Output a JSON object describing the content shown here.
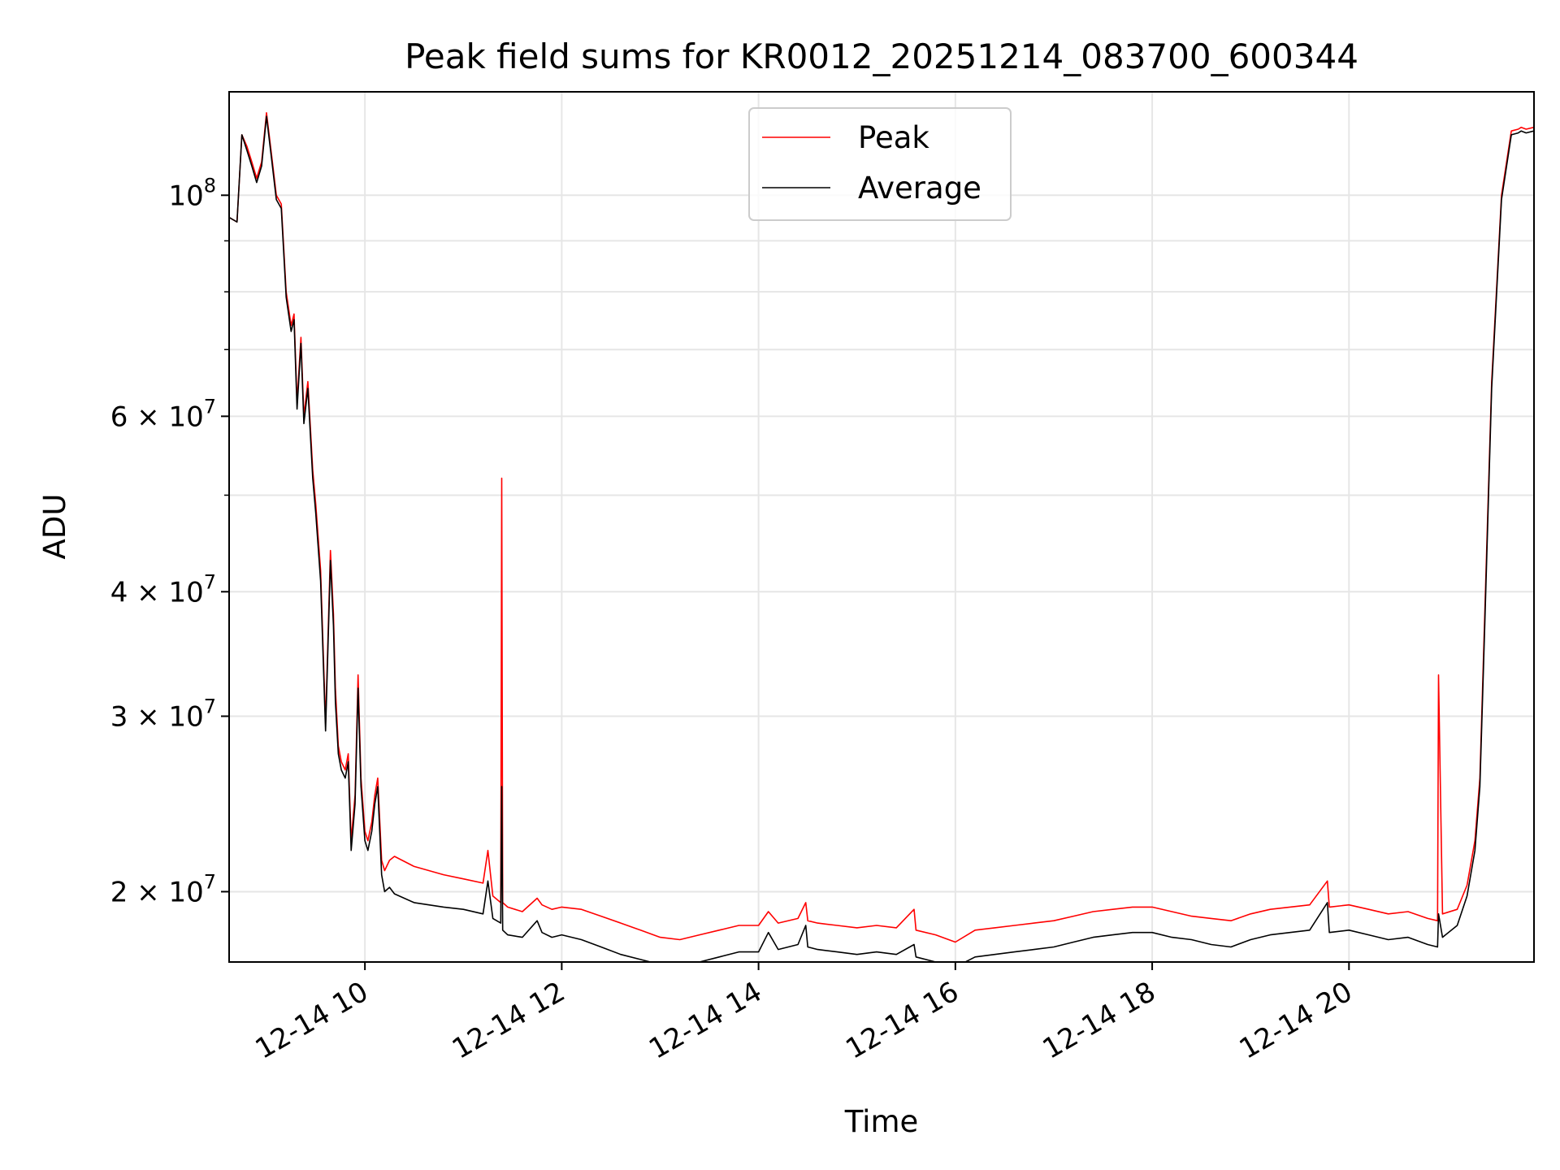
{
  "chart_data": {
    "type": "line",
    "title": "Peak field sums for KR0012_20251214_083700_600344",
    "xlabel": "Time",
    "ylabel": "ADU",
    "y_scale": "log",
    "ylim": [
      17000000,
      127000000
    ],
    "xlim": [
      8.62,
      21.88
    ],
    "grid": true,
    "legend_position": "upper center",
    "x_ticks": [
      {
        "value": 10,
        "label": "12-14 10"
      },
      {
        "value": 12,
        "label": "12-14 12"
      },
      {
        "value": 14,
        "label": "12-14 14"
      },
      {
        "value": 16,
        "label": "12-14 16"
      },
      {
        "value": 18,
        "label": "12-14 18"
      },
      {
        "value": 20,
        "label": "12-14 20"
      }
    ],
    "y_ticks": [
      {
        "value": 20000000,
        "mantissa": "2",
        "exp": "7"
      },
      {
        "value": 30000000,
        "mantissa": "3",
        "exp": "7"
      },
      {
        "value": 40000000,
        "mantissa": "4",
        "exp": "7"
      },
      {
        "value": 60000000,
        "mantissa": "6",
        "exp": "7"
      },
      {
        "value": 100000000,
        "mantissa": "",
        "exp": "8"
      }
    ],
    "y_minor_ticks": [
      50000000,
      70000000,
      80000000,
      90000000
    ],
    "series": [
      {
        "name": "Peak",
        "color": "#ff0000",
        "x": [
          8.62,
          8.7,
          8.75,
          8.8,
          8.85,
          8.9,
          8.95,
          9.0,
          9.05,
          9.1,
          9.15,
          9.2,
          9.25,
          9.28,
          9.31,
          9.35,
          9.38,
          9.42,
          9.47,
          9.5,
          9.55,
          9.6,
          9.65,
          9.68,
          9.7,
          9.73,
          9.76,
          9.8,
          9.83,
          9.86,
          9.9,
          9.93,
          9.96,
          10.0,
          10.03,
          10.07,
          10.1,
          10.13,
          10.17,
          10.2,
          10.25,
          10.3,
          10.5,
          10.8,
          11.0,
          11.2,
          11.25,
          11.3,
          11.38,
          11.39,
          11.4,
          11.45,
          11.6,
          11.75,
          11.8,
          11.9,
          12.0,
          12.2,
          12.4,
          12.6,
          12.8,
          13.0,
          13.2,
          13.4,
          13.6,
          13.8,
          14.0,
          14.1,
          14.2,
          14.4,
          14.48,
          14.5,
          14.6,
          14.8,
          15.0,
          15.2,
          15.4,
          15.58,
          15.6,
          15.8,
          16.0,
          16.2,
          16.4,
          16.6,
          16.8,
          17.0,
          17.2,
          17.4,
          17.6,
          17.8,
          18.0,
          18.2,
          18.4,
          18.6,
          18.8,
          19.0,
          19.2,
          19.4,
          19.6,
          19.78,
          19.8,
          20.0,
          20.2,
          20.4,
          20.6,
          20.8,
          20.9,
          20.91,
          20.95,
          21.1,
          21.2,
          21.28,
          21.33,
          21.38,
          21.45,
          21.55,
          21.65,
          21.72,
          21.75,
          21.8,
          21.88
        ],
        "values": [
          95000000,
          94000000,
          115000000,
          112000000,
          108000000,
          104000000,
          108000000,
          121000000,
          110000000,
          100000000,
          98000000,
          80000000,
          74000000,
          76000000,
          62000000,
          72000000,
          60000000,
          65000000,
          53000000,
          49000000,
          42000000,
          29500000,
          44000000,
          38000000,
          32000000,
          28000000,
          27000000,
          26500000,
          27500000,
          22500000,
          25000000,
          33000000,
          26000000,
          23000000,
          22500000,
          23500000,
          25000000,
          26000000,
          21500000,
          21000000,
          21500000,
          21700000,
          21200000,
          20800000,
          20600000,
          20400000,
          22000000,
          19800000,
          19500000,
          52000000,
          19500000,
          19300000,
          19100000,
          19700000,
          19400000,
          19200000,
          19300000,
          19200000,
          18900000,
          18600000,
          18300000,
          18000000,
          17900000,
          18100000,
          18300000,
          18500000,
          18500000,
          19100000,
          18600000,
          18800000,
          19500000,
          18700000,
          18600000,
          18500000,
          18400000,
          18500000,
          18400000,
          19200000,
          18300000,
          18100000,
          17800000,
          18300000,
          18400000,
          18500000,
          18600000,
          18700000,
          18900000,
          19100000,
          19200000,
          19300000,
          19300000,
          19100000,
          18900000,
          18800000,
          18700000,
          19000000,
          19200000,
          19300000,
          19400000,
          20500000,
          19300000,
          19400000,
          19200000,
          19000000,
          19100000,
          18800000,
          18700000,
          33000000,
          19000000,
          19200000,
          20300000,
          22500000,
          26000000,
          38000000,
          65000000,
          100000000,
          116000000,
          116500000,
          117000000,
          116500000,
          117000000
        ]
      },
      {
        "name": "Average",
        "color": "#000000",
        "x": [
          8.62,
          8.7,
          8.75,
          8.8,
          8.85,
          8.9,
          8.95,
          9.0,
          9.05,
          9.1,
          9.15,
          9.2,
          9.25,
          9.28,
          9.31,
          9.35,
          9.38,
          9.42,
          9.47,
          9.5,
          9.55,
          9.6,
          9.65,
          9.68,
          9.7,
          9.73,
          9.76,
          9.8,
          9.83,
          9.86,
          9.9,
          9.93,
          9.96,
          10.0,
          10.03,
          10.07,
          10.1,
          10.13,
          10.17,
          10.2,
          10.25,
          10.3,
          10.5,
          10.8,
          11.0,
          11.2,
          11.25,
          11.3,
          11.38,
          11.39,
          11.4,
          11.45,
          11.6,
          11.75,
          11.8,
          11.9,
          12.0,
          12.2,
          12.4,
          12.6,
          12.8,
          13.0,
          13.2,
          13.4,
          13.6,
          13.8,
          14.0,
          14.1,
          14.2,
          14.4,
          14.48,
          14.5,
          14.6,
          14.8,
          15.0,
          15.2,
          15.4,
          15.58,
          15.6,
          15.8,
          16.0,
          16.2,
          16.4,
          16.6,
          16.8,
          17.0,
          17.2,
          17.4,
          17.6,
          17.8,
          18.0,
          18.2,
          18.4,
          18.6,
          18.8,
          19.0,
          19.2,
          19.4,
          19.6,
          19.78,
          19.8,
          20.0,
          20.2,
          20.4,
          20.6,
          20.8,
          20.9,
          20.91,
          20.95,
          21.1,
          21.2,
          21.28,
          21.33,
          21.38,
          21.45,
          21.55,
          21.65,
          21.72,
          21.75,
          21.8,
          21.88
        ],
        "values": [
          95000000,
          94000000,
          115000000,
          111000000,
          107000000,
          103000000,
          107000000,
          120000000,
          109000000,
          99000000,
          97000000,
          79000000,
          73000000,
          75000000,
          61000000,
          71000000,
          59000000,
          64000000,
          52000000,
          48000000,
          41000000,
          29000000,
          43000000,
          37000000,
          31000000,
          27500000,
          26500000,
          26000000,
          27000000,
          22000000,
          24500000,
          32000000,
          25500000,
          22500000,
          22000000,
          23000000,
          24500000,
          25500000,
          20800000,
          20000000,
          20200000,
          19900000,
          19500000,
          19300000,
          19200000,
          19000000,
          20500000,
          18800000,
          18600000,
          25500000,
          18300000,
          18100000,
          18000000,
          18700000,
          18200000,
          18000000,
          18100000,
          17900000,
          17600000,
          17300000,
          17100000,
          16900000,
          16800000,
          17000000,
          17200000,
          17400000,
          17400000,
          18200000,
          17500000,
          17700000,
          18500000,
          17600000,
          17500000,
          17400000,
          17300000,
          17400000,
          17300000,
          17700000,
          17200000,
          17000000,
          16800000,
          17200000,
          17300000,
          17400000,
          17500000,
          17600000,
          17800000,
          18000000,
          18100000,
          18200000,
          18200000,
          18000000,
          17900000,
          17700000,
          17600000,
          17900000,
          18100000,
          18200000,
          18300000,
          19500000,
          18200000,
          18300000,
          18100000,
          17900000,
          18000000,
          17700000,
          17600000,
          19000000,
          18000000,
          18500000,
          19800000,
          22000000,
          25500000,
          37000000,
          64000000,
          99000000,
          115000000,
          115500000,
          116000000,
          115500000,
          116000000
        ]
      }
    ]
  }
}
